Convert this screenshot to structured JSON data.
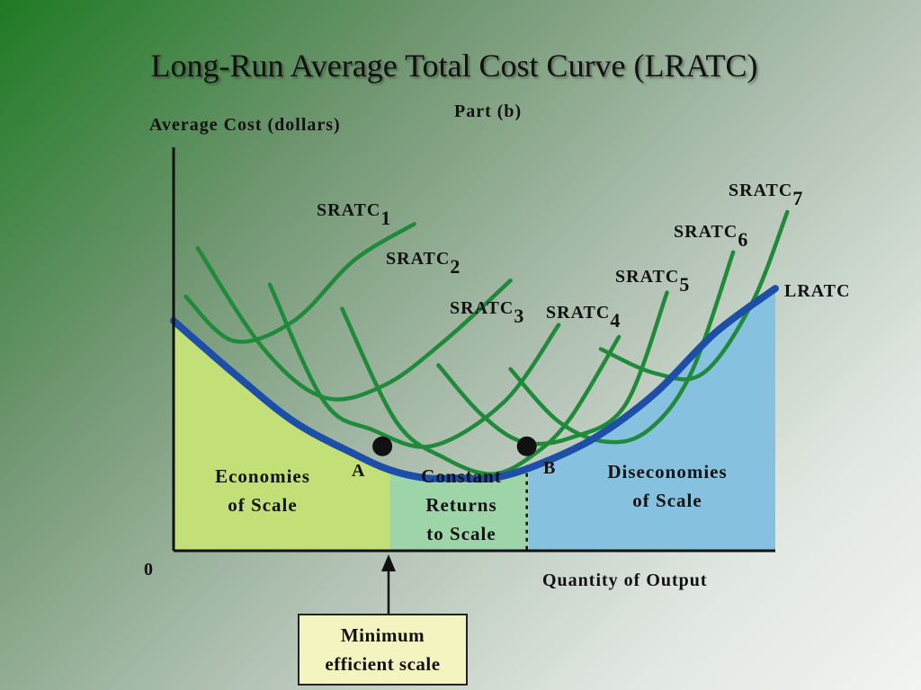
{
  "slide": {
    "title": "Long-Run Average Total Cost Curve (LRATC)",
    "subtitle": "Part (b)"
  },
  "chart_data": {
    "type": "line",
    "title": "Long-Run Average Total Cost Curve (LRATC)",
    "subtitle": "Part (b)",
    "ylabel": "Average Cost (dollars)",
    "xlabel": "Quantity of Output",
    "origin_label": "0",
    "xlim": [
      0,
      100
    ],
    "ylim": [
      0,
      100
    ],
    "grid": false,
    "colors": {
      "lratc": "#1e4fa8",
      "sratc": "#1f8a3a",
      "economies_region": "#c3df77",
      "constant_region": "#9dd5a9",
      "diseconomies_region": "#86c1df"
    },
    "lratc": {
      "name": "LRATC",
      "x": [
        0,
        10,
        20,
        30,
        36,
        42,
        47,
        53,
        60,
        70,
        80,
        90,
        100
      ],
      "y": [
        57,
        44,
        32,
        24,
        20,
        18,
        18,
        18,
        21,
        28,
        39,
        54,
        65
      ]
    },
    "sratc": [
      {
        "name": "SRATC",
        "sub": "1",
        "x": [
          2,
          10,
          20,
          30,
          40
        ],
        "y": [
          63,
          52,
          57,
          72,
          81
        ]
      },
      {
        "name": "SRATC",
        "sub": "2",
        "x": [
          4,
          15,
          25,
          35,
          45,
          56
        ],
        "y": [
          75,
          50,
          38,
          41,
          52,
          67
        ]
      },
      {
        "name": "SRATC",
        "sub": "3",
        "x": [
          16,
          25,
          33,
          43,
          55,
          64
        ],
        "y": [
          66,
          37,
          30,
          26,
          37,
          56
        ]
      },
      {
        "name": "SRATC",
        "sub": "4",
        "x": [
          28,
          37,
          45,
          53,
          60,
          66,
          74
        ],
        "y": [
          60,
          32,
          23,
          19,
          24,
          33,
          53
        ]
      },
      {
        "name": "SRATC",
        "sub": "5",
        "x": [
          44,
          51,
          58,
          66,
          75,
          82
        ],
        "y": [
          46,
          34,
          27,
          28,
          36,
          64
        ]
      },
      {
        "name": "SRATC",
        "sub": "6",
        "x": [
          56,
          64,
          72,
          79,
          86,
          93
        ],
        "y": [
          45,
          32,
          27,
          30,
          44,
          74
        ]
      },
      {
        "name": "SRATC",
        "sub": "7",
        "x": [
          71,
          80,
          88,
          96,
          102
        ],
        "y": [
          50,
          44,
          44,
          61,
          84
        ]
      }
    ],
    "points": [
      {
        "label": "A",
        "x": 35,
        "y": 25
      },
      {
        "label": "B",
        "x": 59,
        "y": 25
      }
    ],
    "regions": [
      {
        "lines": [
          "Economies",
          "of Scale"
        ],
        "x_range": [
          0,
          36
        ]
      },
      {
        "lines": [
          "Constant",
          "Returns",
          "to Scale"
        ],
        "x_range": [
          36,
          59
        ]
      },
      {
        "lines": [
          "Diseconomies",
          "of Scale"
        ],
        "x_range": [
          59,
          100
        ]
      }
    ],
    "annotation": {
      "lines": [
        "Minimum",
        "efficient scale"
      ],
      "points_to_x": 36
    }
  }
}
